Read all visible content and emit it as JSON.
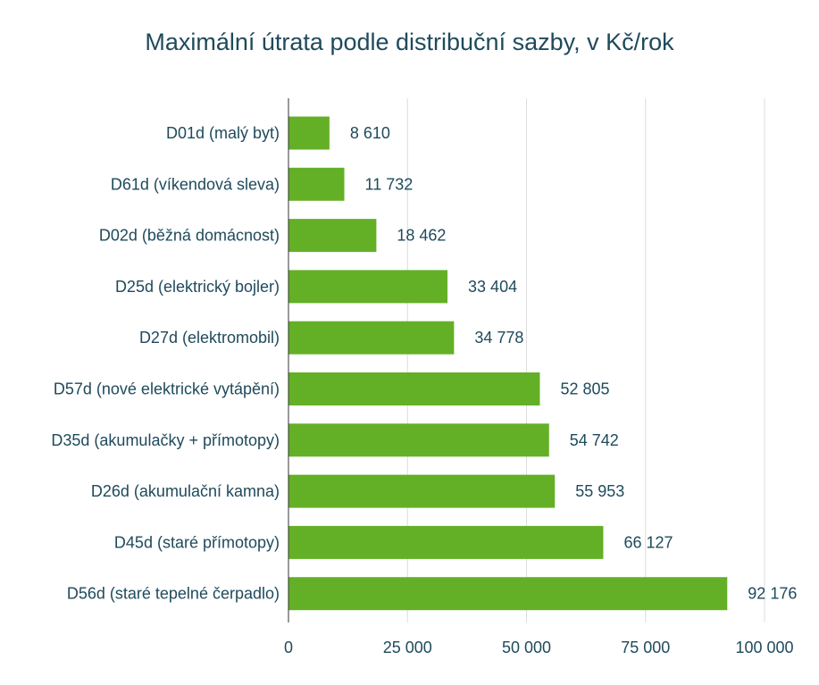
{
  "chart_data": {
    "type": "bar",
    "orientation": "horizontal",
    "title": "Maximální útrata podle distribuční sazby, v Kč/rok",
    "categories": [
      "D01d (malý byt)",
      "D61d (víkendová sleva)",
      "D02d (běžná domácnost)",
      "D25d (elektrický bojler)",
      "D27d (elektromobil)",
      "D57d (nové elektrické vytápění)",
      "D35d (akumulačky + přímotopy)",
      "D26d (akumulační kamna)",
      "D45d (staré přímotopy)",
      "D56d (staré tepelné čerpadlo)"
    ],
    "values": [
      8610,
      11732,
      18462,
      33404,
      34778,
      52805,
      54742,
      55953,
      66127,
      92176
    ],
    "value_labels": [
      "8 610",
      "11 732",
      "18 462",
      "33 404",
      "34 778",
      "52 805",
      "54 742",
      "55 953",
      "66 127",
      "92 176"
    ],
    "xlim": [
      0,
      100000
    ],
    "x_ticks": [
      0,
      25000,
      50000,
      75000,
      100000
    ],
    "x_tick_labels": [
      "0",
      "25 000",
      "50 000",
      "75 000",
      "100 000"
    ],
    "grid": true,
    "bar_color": "#63b026",
    "text_color": "#1f4a5c"
  }
}
